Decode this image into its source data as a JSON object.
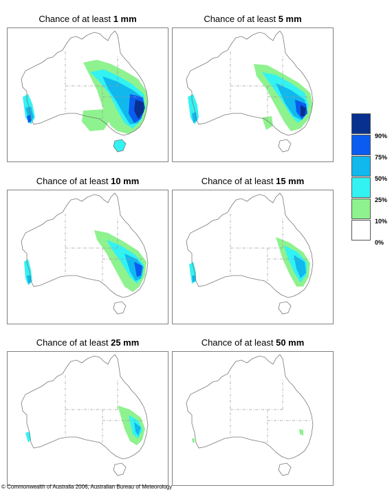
{
  "panels": [
    {
      "prefix": "Chance of at least ",
      "amount": "1 mm"
    },
    {
      "prefix": "Chance of at least ",
      "amount": "5 mm"
    },
    {
      "prefix": "Chance of at least ",
      "amount": "10 mm"
    },
    {
      "prefix": "Chance of at least ",
      "amount": "15 mm"
    },
    {
      "prefix": "Chance of at least ",
      "amount": "25 mm"
    },
    {
      "prefix": "Chance of at least ",
      "amount": "50 mm"
    }
  ],
  "legend": {
    "labels": [
      "90%",
      "75%",
      "50%",
      "25%",
      "10%",
      "0%"
    ],
    "colors": [
      "#08308f",
      "#0a5cf0",
      "#10b8ee",
      "#33f2f2",
      "#8ef28e",
      "#ffffff"
    ]
  },
  "footer": "© Commonwealth of Australia 2006, Australian Bureau of Meteorology"
}
